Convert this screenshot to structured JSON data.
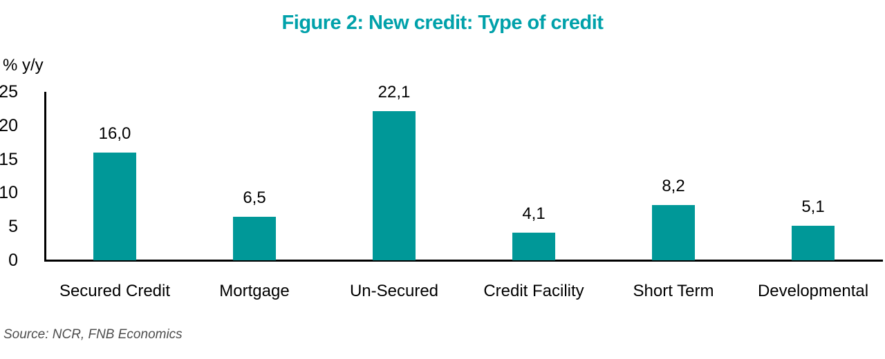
{
  "colors": {
    "title_text": "#00A1AA",
    "bar_fill": "#009898",
    "axis_line": "#000000",
    "source_text": "#4D4D4D"
  },
  "chart_data": {
    "type": "bar",
    "title": "Figure 2: New credit: Type of credit",
    "ylabel": "% y/y",
    "xlabel": "",
    "categories": [
      "Secured Credit",
      "Mortgage",
      "Un-Secured",
      "Credit Facility",
      "Short Term",
      "Developmental"
    ],
    "values": [
      16.0,
      6.5,
      22.1,
      4.1,
      8.2,
      5.1
    ],
    "value_labels": [
      "16,0",
      "6,5",
      "22,1",
      "4,1",
      "8,2",
      "5,1"
    ],
    "ylim": [
      0,
      25
    ],
    "yticks": [
      0,
      5,
      10,
      15,
      20,
      25
    ],
    "grid": false,
    "legend": "none",
    "source": "Source: NCR, FNB Economics"
  }
}
